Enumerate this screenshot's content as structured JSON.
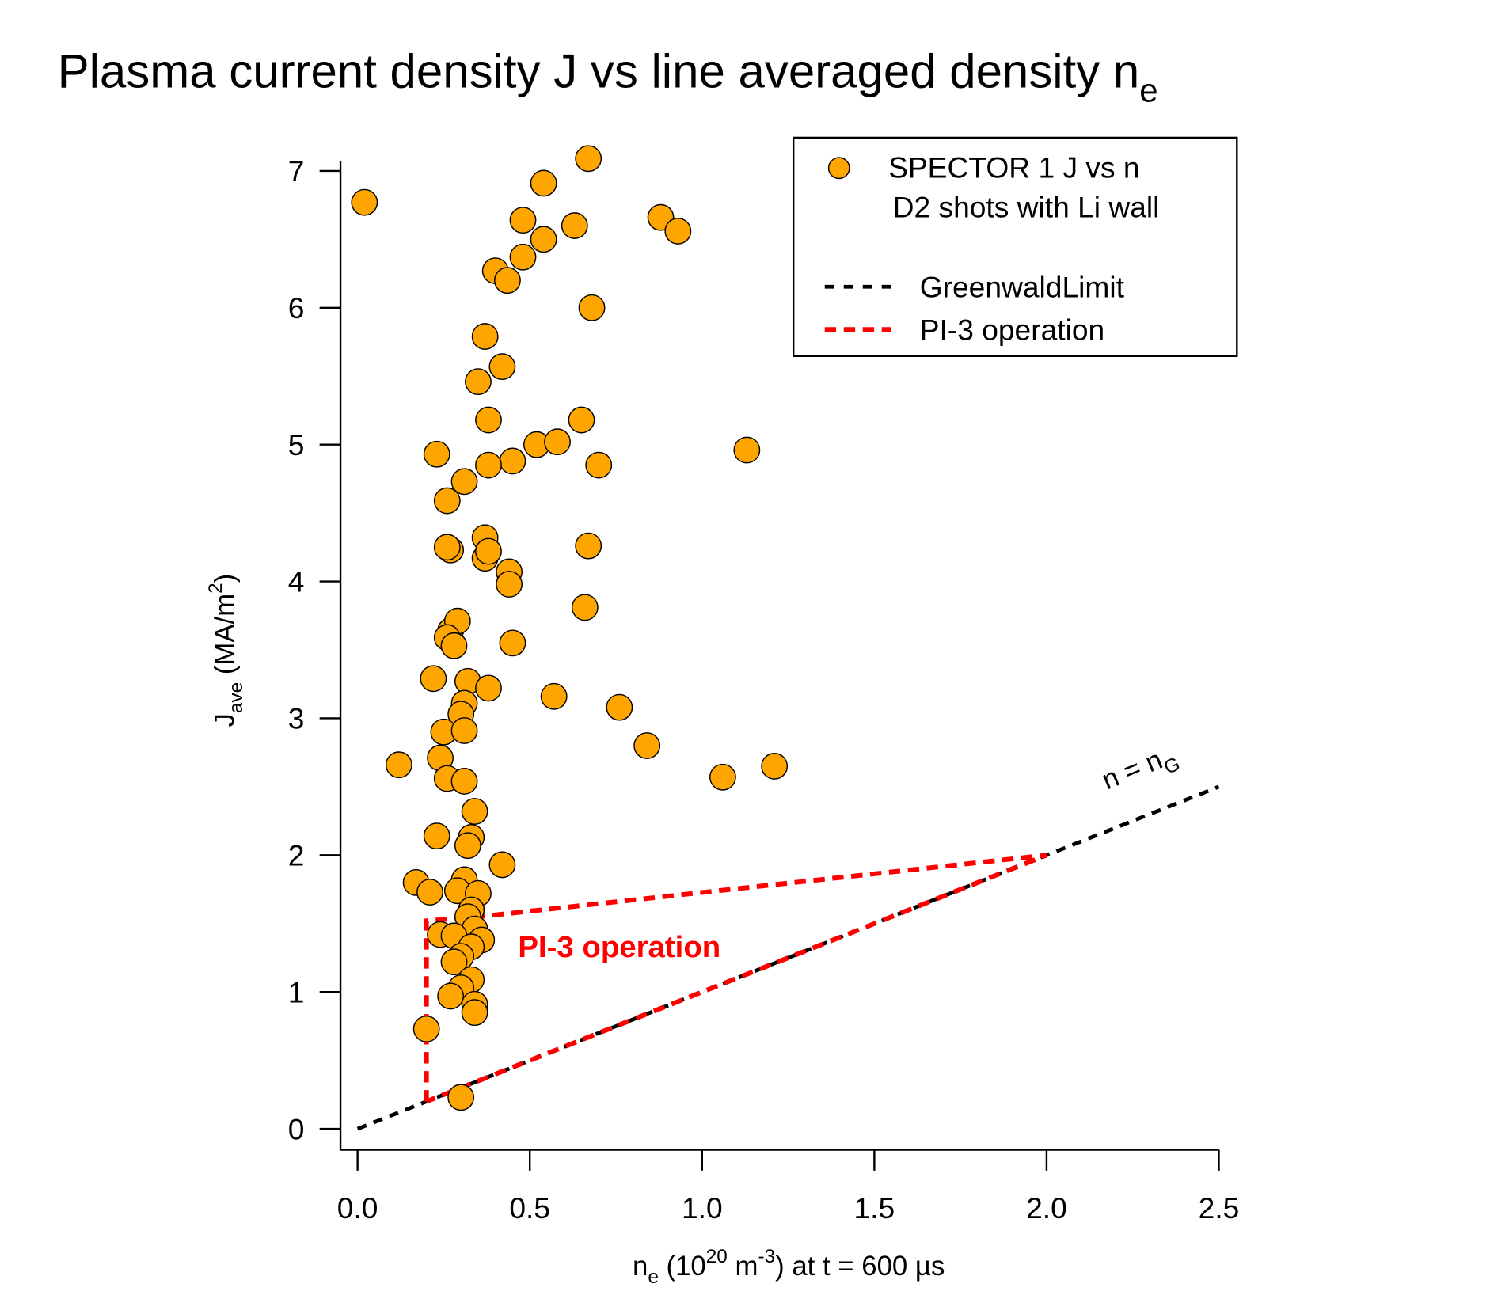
{
  "chart_data": {
    "type": "scatter",
    "title": [
      {
        "text": "Plasma current density J vs line averaged density  n"
      },
      {
        "text": "e",
        "shift": "sub"
      }
    ],
    "x_label": [
      {
        "text": "n"
      },
      {
        "text": "e",
        "shift": "sub"
      },
      {
        "text": " (10"
      },
      {
        "text": "20",
        "shift": "sup"
      },
      {
        "text": " m"
      },
      {
        "text": "-3",
        "shift": "sup"
      },
      {
        "text": ") at t = 600 µs"
      }
    ],
    "y_label": [
      {
        "text": "J"
      },
      {
        "text": "ave",
        "shift": "sub"
      },
      {
        "text": " (MA/m"
      },
      {
        "text": "2",
        "shift": "sup"
      },
      {
        "text": ")"
      }
    ],
    "xlim": [
      0,
      2.5
    ],
    "ylim": [
      0,
      7
    ],
    "xticks": [
      {
        "value": 0,
        "label": "0.0"
      },
      0.5,
      {
        "value": 1,
        "label": "1.0"
      },
      1.5,
      {
        "value": 2,
        "label": "2.0"
      },
      2.5
    ],
    "yticks": [
      0,
      1,
      2,
      3,
      4,
      5,
      6,
      7
    ],
    "grid": false,
    "legend": "top-right",
    "legend_note": "D2 shots with Li wall",
    "series": [
      {
        "name": "SPECTOR 1  J vs n",
        "mode": "markers",
        "color": "#ffa500",
        "x": [
          0.02,
          0.67,
          0.54,
          0.48,
          0.63,
          0.54,
          0.48,
          0.88,
          0.93,
          0.4,
          0.435,
          0.68,
          0.37,
          0.42,
          0.35,
          0.38,
          0.65,
          0.52,
          0.58,
          1.13,
          0.23,
          0.45,
          0.38,
          0.7,
          0.31,
          0.26,
          0.37,
          0.67,
          0.27,
          0.26,
          0.37,
          0.38,
          0.44,
          0.44,
          0.66,
          0.27,
          0.29,
          0.26,
          0.28,
          0.45,
          0.22,
          0.32,
          0.38,
          0.57,
          0.76,
          0.31,
          0.3,
          0.25,
          0.31,
          0.84,
          0.12,
          0.24,
          1.06,
          1.21,
          0.26,
          0.31,
          0.34,
          0.23,
          0.33,
          0.32,
          0.42,
          0.17,
          0.21,
          0.31,
          0.29,
          0.35,
          0.33,
          0.32,
          0.34,
          0.24,
          0.28,
          0.36,
          0.33,
          0.3,
          0.28,
          0.33,
          0.3,
          0.27,
          0.34,
          0.34,
          0.2,
          0.3
        ],
        "y": [
          6.77,
          7.09,
          6.91,
          6.64,
          6.6,
          6.5,
          6.37,
          6.66,
          6.56,
          6.27,
          6.2,
          6.0,
          5.79,
          5.57,
          5.46,
          5.18,
          5.18,
          5.0,
          5.02,
          4.96,
          4.93,
          4.88,
          4.85,
          4.85,
          4.73,
          4.59,
          4.32,
          4.26,
          4.23,
          4.25,
          4.17,
          4.22,
          4.07,
          3.98,
          3.81,
          3.64,
          3.71,
          3.59,
          3.53,
          3.55,
          3.29,
          3.27,
          3.22,
          3.16,
          3.08,
          3.11,
          3.03,
          2.9,
          2.91,
          2.8,
          2.66,
          2.71,
          2.57,
          2.65,
          2.56,
          2.54,
          2.32,
          2.14,
          2.13,
          2.07,
          1.93,
          1.8,
          1.73,
          1.82,
          1.74,
          1.72,
          1.6,
          1.55,
          1.46,
          1.42,
          1.41,
          1.38,
          1.33,
          1.26,
          1.22,
          1.09,
          1.03,
          0.97,
          0.91,
          0.85,
          0.73,
          0.23
        ]
      },
      {
        "name": "GreenwaldLimit",
        "mode": "lines",
        "color": "#000000",
        "x": [
          0,
          2.5
        ],
        "y": [
          0,
          2.5
        ]
      },
      {
        "name": "PI-3 operation",
        "mode": "lines",
        "color": "#ff0000",
        "x": [
          0.2,
          0.2,
          0.35,
          2.0,
          0.2
        ],
        "y": [
          0.2,
          1.52,
          1.55,
          2.0,
          0.2
        ]
      }
    ],
    "annotations": [
      {
        "parts": [
          {
            "text": "n = n"
          },
          {
            "text": "G",
            "shift": "sub"
          }
        ],
        "color": "#000000"
      },
      {
        "parts": [
          {
            "text": "PI-3 operation"
          }
        ],
        "color": "#ff0000"
      }
    ]
  }
}
